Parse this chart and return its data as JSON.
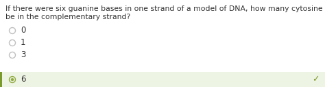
{
  "question_line1": "If there were six guanine bases in one strand of a model of DNA, how many cytosine bases would there",
  "question_line2": "be in the complementary strand?",
  "options": [
    "0",
    "1",
    "3",
    "6"
  ],
  "correct_index": 3,
  "bg_color": "#ffffff",
  "highlight_bg": "#eef4e4",
  "highlight_border": "#7a9a2e",
  "check_color": "#7a9a2e",
  "radio_color": "#c0c0c0",
  "radio_selected_color": "#8faa40",
  "text_color": "#333333",
  "question_fontsize": 7.8,
  "option_fontsize": 8.5,
  "check_fontsize": 9.0
}
